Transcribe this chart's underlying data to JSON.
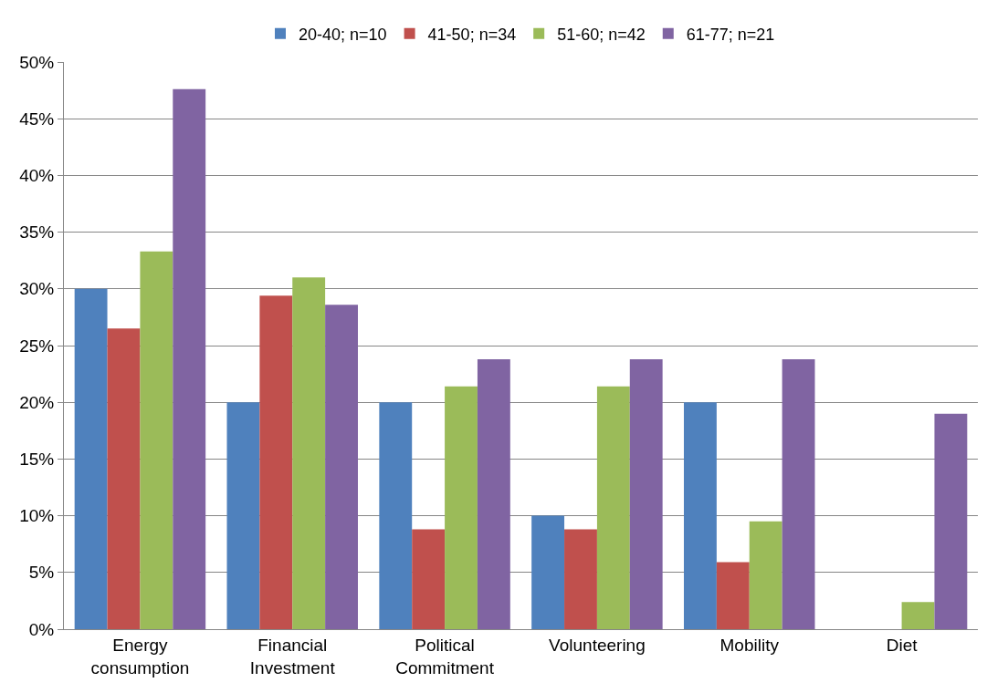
{
  "chart_data": {
    "type": "bar",
    "categories": [
      "Energy consumption",
      "Financial Investment",
      "Political Commitment",
      "Volunteering",
      "Mobility",
      "Diet"
    ],
    "series": [
      {
        "name": "20-40; n=10",
        "color": "#4f81bd",
        "values": [
          30.0,
          20.0,
          20.0,
          10.0,
          20.0,
          0
        ]
      },
      {
        "name": "41-50; n=34",
        "color": "#c0504d",
        "values": [
          26.5,
          29.4,
          8.8,
          8.8,
          5.9,
          0
        ]
      },
      {
        "name": "51-60; n=42",
        "color": "#9bbb59",
        "values": [
          33.3,
          31.0,
          21.4,
          21.4,
          9.5,
          2.4
        ]
      },
      {
        "name": "61-77; n=21",
        "color": "#8064a2",
        "values": [
          47.6,
          28.6,
          23.8,
          23.8,
          23.8,
          19.0
        ]
      }
    ],
    "ylim": [
      0,
      50
    ],
    "yticks": [
      {
        "value": 0,
        "label": "0%"
      },
      {
        "value": 5,
        "label": "5%"
      },
      {
        "value": 10,
        "label": "10%"
      },
      {
        "value": 15,
        "label": "15%"
      },
      {
        "value": 20,
        "label": "20%"
      },
      {
        "value": 25,
        "label": "25%"
      },
      {
        "value": 30,
        "label": "30%"
      },
      {
        "value": 35,
        "label": "35%"
      },
      {
        "value": 40,
        "label": "40%"
      },
      {
        "value": 45,
        "label": "45%"
      },
      {
        "value": 50,
        "label": "50%"
      }
    ],
    "grid": "y",
    "legend": "top"
  }
}
